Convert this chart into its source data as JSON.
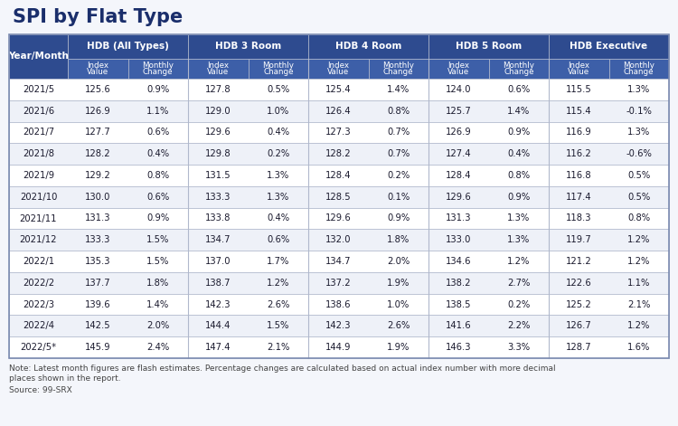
{
  "title": "SPI by Flat Type",
  "header_bg": "#2e4b8f",
  "header_text": "#ffffff",
  "subheader_bg": "#3d5fa8",
  "row_bg_light": "#eef1f8",
  "row_bg_white": "#ffffff",
  "border_color": "#b0b8cc",
  "title_color": "#1a2e6b",
  "note_color": "#444444",
  "fig_bg": "#f4f6fb",
  "groups": [
    "HDB (All Types)",
    "HDB 3 Room",
    "HDB 4 Room",
    "HDB 5 Room",
    "HDB Executive"
  ],
  "rows": [
    [
      "2021/5",
      "125.6",
      "0.9%",
      "127.8",
      "0.5%",
      "125.4",
      "1.4%",
      "124.0",
      "0.6%",
      "115.5",
      "1.3%"
    ],
    [
      "2021/6",
      "126.9",
      "1.1%",
      "129.0",
      "1.0%",
      "126.4",
      "0.8%",
      "125.7",
      "1.4%",
      "115.4",
      "-0.1%"
    ],
    [
      "2021/7",
      "127.7",
      "0.6%",
      "129.6",
      "0.4%",
      "127.3",
      "0.7%",
      "126.9",
      "0.9%",
      "116.9",
      "1.3%"
    ],
    [
      "2021/8",
      "128.2",
      "0.4%",
      "129.8",
      "0.2%",
      "128.2",
      "0.7%",
      "127.4",
      "0.4%",
      "116.2",
      "-0.6%"
    ],
    [
      "2021/9",
      "129.2",
      "0.8%",
      "131.5",
      "1.3%",
      "128.4",
      "0.2%",
      "128.4",
      "0.8%",
      "116.8",
      "0.5%"
    ],
    [
      "2021/10",
      "130.0",
      "0.6%",
      "133.3",
      "1.3%",
      "128.5",
      "0.1%",
      "129.6",
      "0.9%",
      "117.4",
      "0.5%"
    ],
    [
      "2021/11",
      "131.3",
      "0.9%",
      "133.8",
      "0.4%",
      "129.6",
      "0.9%",
      "131.3",
      "1.3%",
      "118.3",
      "0.8%"
    ],
    [
      "2021/12",
      "133.3",
      "1.5%",
      "134.7",
      "0.6%",
      "132.0",
      "1.8%",
      "133.0",
      "1.3%",
      "119.7",
      "1.2%"
    ],
    [
      "2022/1",
      "135.3",
      "1.5%",
      "137.0",
      "1.7%",
      "134.7",
      "2.0%",
      "134.6",
      "1.2%",
      "121.2",
      "1.2%"
    ],
    [
      "2022/2",
      "137.7",
      "1.8%",
      "138.7",
      "1.2%",
      "137.2",
      "1.9%",
      "138.2",
      "2.7%",
      "122.6",
      "1.1%"
    ],
    [
      "2022/3",
      "139.6",
      "1.4%",
      "142.3",
      "2.6%",
      "138.6",
      "1.0%",
      "138.5",
      "0.2%",
      "125.2",
      "2.1%"
    ],
    [
      "2022/4",
      "142.5",
      "2.0%",
      "144.4",
      "1.5%",
      "142.3",
      "2.6%",
      "141.6",
      "2.2%",
      "126.7",
      "1.2%"
    ],
    [
      "2022/5*",
      "145.9",
      "2.4%",
      "147.4",
      "2.1%",
      "144.9",
      "1.9%",
      "146.3",
      "3.3%",
      "128.7",
      "1.6%"
    ]
  ],
  "note_line1": "Note: Latest month figures are flash estimates. Percentage changes are calculated based on actual index number with more decimal",
  "note_line2": "places shown in the report.",
  "source": "Source: 99-SRX"
}
